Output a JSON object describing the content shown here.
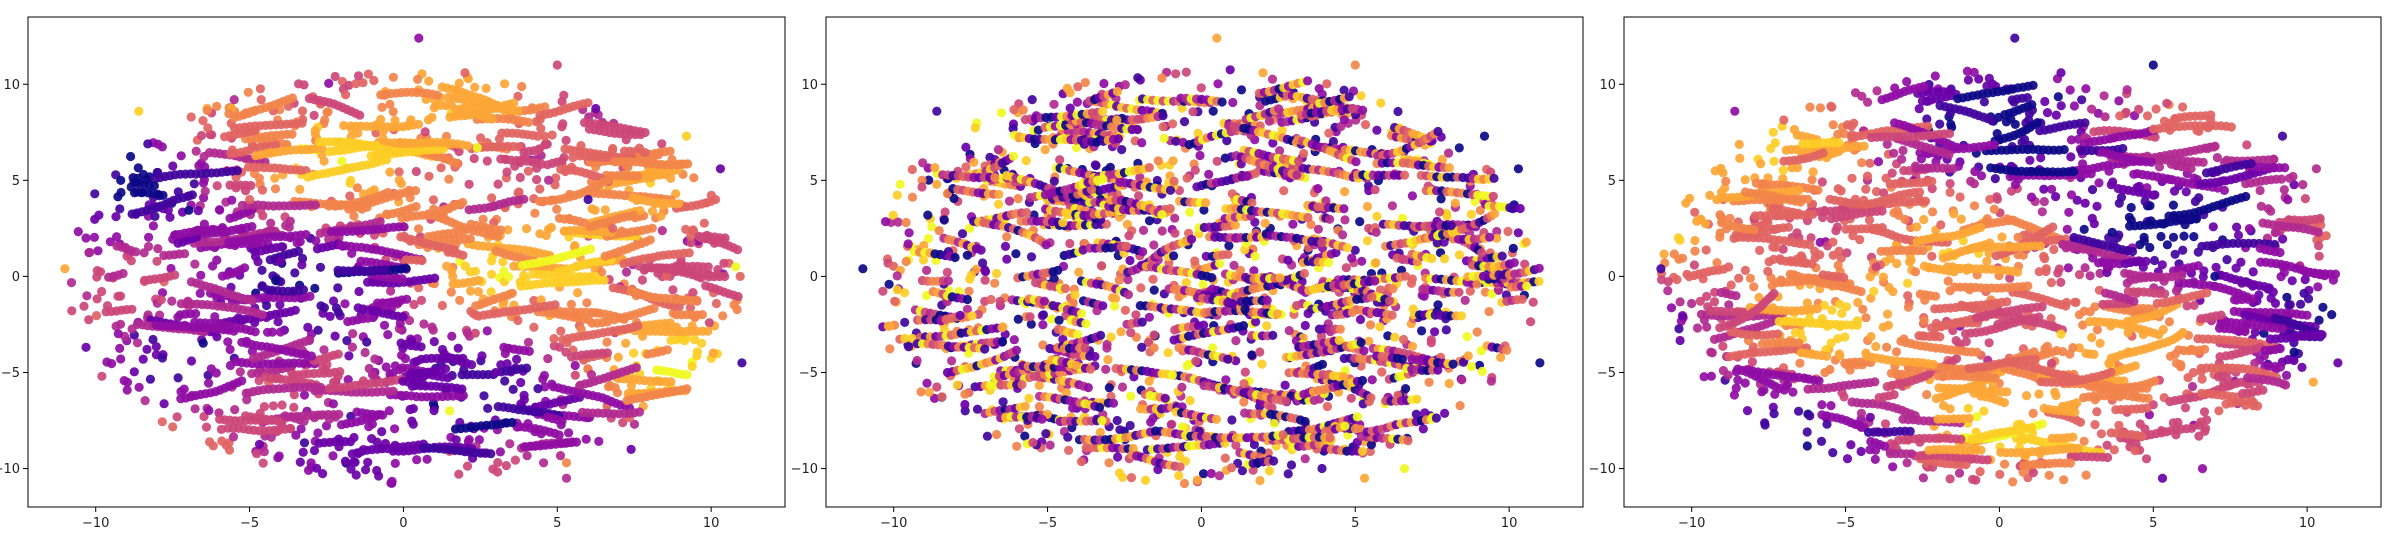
{
  "palette": [
    "#0d0887",
    "#41049d",
    "#6a00a8",
    "#8f0da4",
    "#b12a90",
    "#cc4778",
    "#e16462",
    "#f2844b",
    "#fca636",
    "#fcce25",
    "#f0f921"
  ],
  "chart_data": [
    {
      "type": "scatter",
      "title": "",
      "xlabel": "",
      "ylabel": "",
      "xlim": [
        -12.2,
        12.4
      ],
      "ylim": [
        -12.0,
        13.5
      ],
      "xticks": [
        -10,
        -5,
        0,
        5,
        10
      ],
      "yticks": [
        -10,
        -5,
        0,
        5,
        10
      ],
      "xtick_labels": [
        "−10",
        "−5",
        "0",
        "5",
        "10"
      ],
      "ytick_labels": [
        "−10",
        "−5",
        "0",
        "5",
        "10"
      ],
      "grid": false,
      "legend": "none",
      "colormap": "plasma",
      "coloring": "clustered streaks",
      "points": [
        {
          "x": 0.5,
          "y": 12.4,
          "c": 3
        },
        {
          "x": 5.0,
          "y": 11.0,
          "c": 5
        },
        {
          "x": -8.6,
          "y": 8.6,
          "c": 9
        },
        {
          "x": 11.0,
          "y": -4.5,
          "c": 1
        },
        {
          "x": 10.3,
          "y": 5.6,
          "c": 2
        },
        {
          "x": 5.3,
          "y": -10.5,
          "c": 4
        },
        {
          "x": 5.3,
          "y": -9.7,
          "c": 7
        },
        {
          "x": -11.0,
          "y": 0.4,
          "c": 8
        },
        {
          "x": -3.0,
          "y": -9.7,
          "c": 3
        },
        {
          "x": 9.2,
          "y": 7.3,
          "c": 9
        },
        {
          "x": 2.0,
          "y": 10.6,
          "c": 6
        },
        {
          "x": -5.5,
          "y": 9.2,
          "c": 4
        },
        {
          "x": 7.4,
          "y": -9.0,
          "c": 2
        },
        {
          "x": -9.8,
          "y": -5.2,
          "c": 5
        },
        {
          "x": 10.8,
          "y": 0.5,
          "c": 10
        },
        {
          "x": -2.0,
          "y": 6.0,
          "c": 10
        },
        {
          "x": 2.4,
          "y": 6.7,
          "c": 10
        },
        {
          "x": -4.0,
          "y": 0.8,
          "c": 2
        },
        {
          "x": -3.3,
          "y": 0.6,
          "c": 2
        },
        {
          "x": 6.0,
          "y": 4.0,
          "c": 1
        },
        {
          "x": 1.5,
          "y": -7.0,
          "c": 10
        },
        {
          "x": -5.0,
          "y": 4.0,
          "c": 6
        },
        {
          "x": 3.0,
          "y": -5.0,
          "c": 2
        },
        {
          "x": 6.8,
          "y": 2.5,
          "c": 6
        }
      ]
    },
    {
      "type": "scatter",
      "title": "",
      "xlabel": "",
      "ylabel": "",
      "xlim": [
        -12.2,
        12.4
      ],
      "ylim": [
        -12.0,
        13.5
      ],
      "xticks": [
        -10,
        -5,
        0,
        5,
        10
      ],
      "yticks": [
        -10,
        -5,
        0,
        5,
        10
      ],
      "xtick_labels": [
        "−10",
        "−5",
        "0",
        "5",
        "10"
      ],
      "ytick_labels": [
        "−10",
        "−5",
        "0",
        "5",
        "10"
      ],
      "grid": false,
      "legend": "none",
      "colormap": "plasma",
      "coloring": "uniformly mixed",
      "points": [
        {
          "x": 0.5,
          "y": 12.4,
          "c": 8
        },
        {
          "x": 5.0,
          "y": 11.0,
          "c": 7
        },
        {
          "x": -8.6,
          "y": 8.6,
          "c": 1
        },
        {
          "x": 11.0,
          "y": -4.5,
          "c": 0
        },
        {
          "x": 10.3,
          "y": 5.6,
          "c": 0
        },
        {
          "x": 5.3,
          "y": -10.5,
          "c": 8
        },
        {
          "x": 6.6,
          "y": -10.0,
          "c": 10
        },
        {
          "x": -11.0,
          "y": 0.4,
          "c": 0
        },
        {
          "x": -3.0,
          "y": -9.7,
          "c": 7
        },
        {
          "x": 9.2,
          "y": 7.3,
          "c": 0
        },
        {
          "x": 2.0,
          "y": 10.6,
          "c": 8
        },
        {
          "x": -5.5,
          "y": 9.2,
          "c": 1
        }
      ]
    },
    {
      "type": "scatter",
      "title": "",
      "xlabel": "",
      "ylabel": "",
      "xlim": [
        -12.2,
        12.4
      ],
      "ylim": [
        -12.0,
        13.5
      ],
      "xticks": [
        -10,
        -5,
        0,
        5,
        10
      ],
      "yticks": [
        -10,
        -5,
        0,
        5,
        10
      ],
      "xtick_labels": [
        "−10",
        "−5",
        "0",
        "5",
        "10"
      ],
      "ytick_labels": [
        "−10",
        "−5",
        "0",
        "5",
        "10"
      ],
      "grid": false,
      "legend": "none",
      "colormap": "plasma",
      "coloring": "clustered streaks",
      "points": [
        {
          "x": 0.5,
          "y": 12.4,
          "c": 1
        },
        {
          "x": 5.0,
          "y": 11.0,
          "c": 0
        },
        {
          "x": -8.6,
          "y": 8.6,
          "c": 3
        },
        {
          "x": 11.0,
          "y": -4.5,
          "c": 2
        },
        {
          "x": 10.3,
          "y": 5.6,
          "c": 4
        },
        {
          "x": 5.3,
          "y": -10.5,
          "c": 2
        },
        {
          "x": 6.6,
          "y": -10.0,
          "c": 3
        },
        {
          "x": -11.0,
          "y": 0.4,
          "c": 1
        },
        {
          "x": -3.0,
          "y": -9.7,
          "c": 4
        },
        {
          "x": 9.2,
          "y": 7.3,
          "c": 1
        },
        {
          "x": 2.0,
          "y": 10.6,
          "c": 2
        },
        {
          "x": 10.2,
          "y": -5.5,
          "c": 8
        },
        {
          "x": 7.0,
          "y": 0.0,
          "c": 0
        },
        {
          "x": -4.0,
          "y": 0.5,
          "c": 5
        },
        {
          "x": 2.0,
          "y": -3.0,
          "c": 9
        }
      ]
    }
  ]
}
